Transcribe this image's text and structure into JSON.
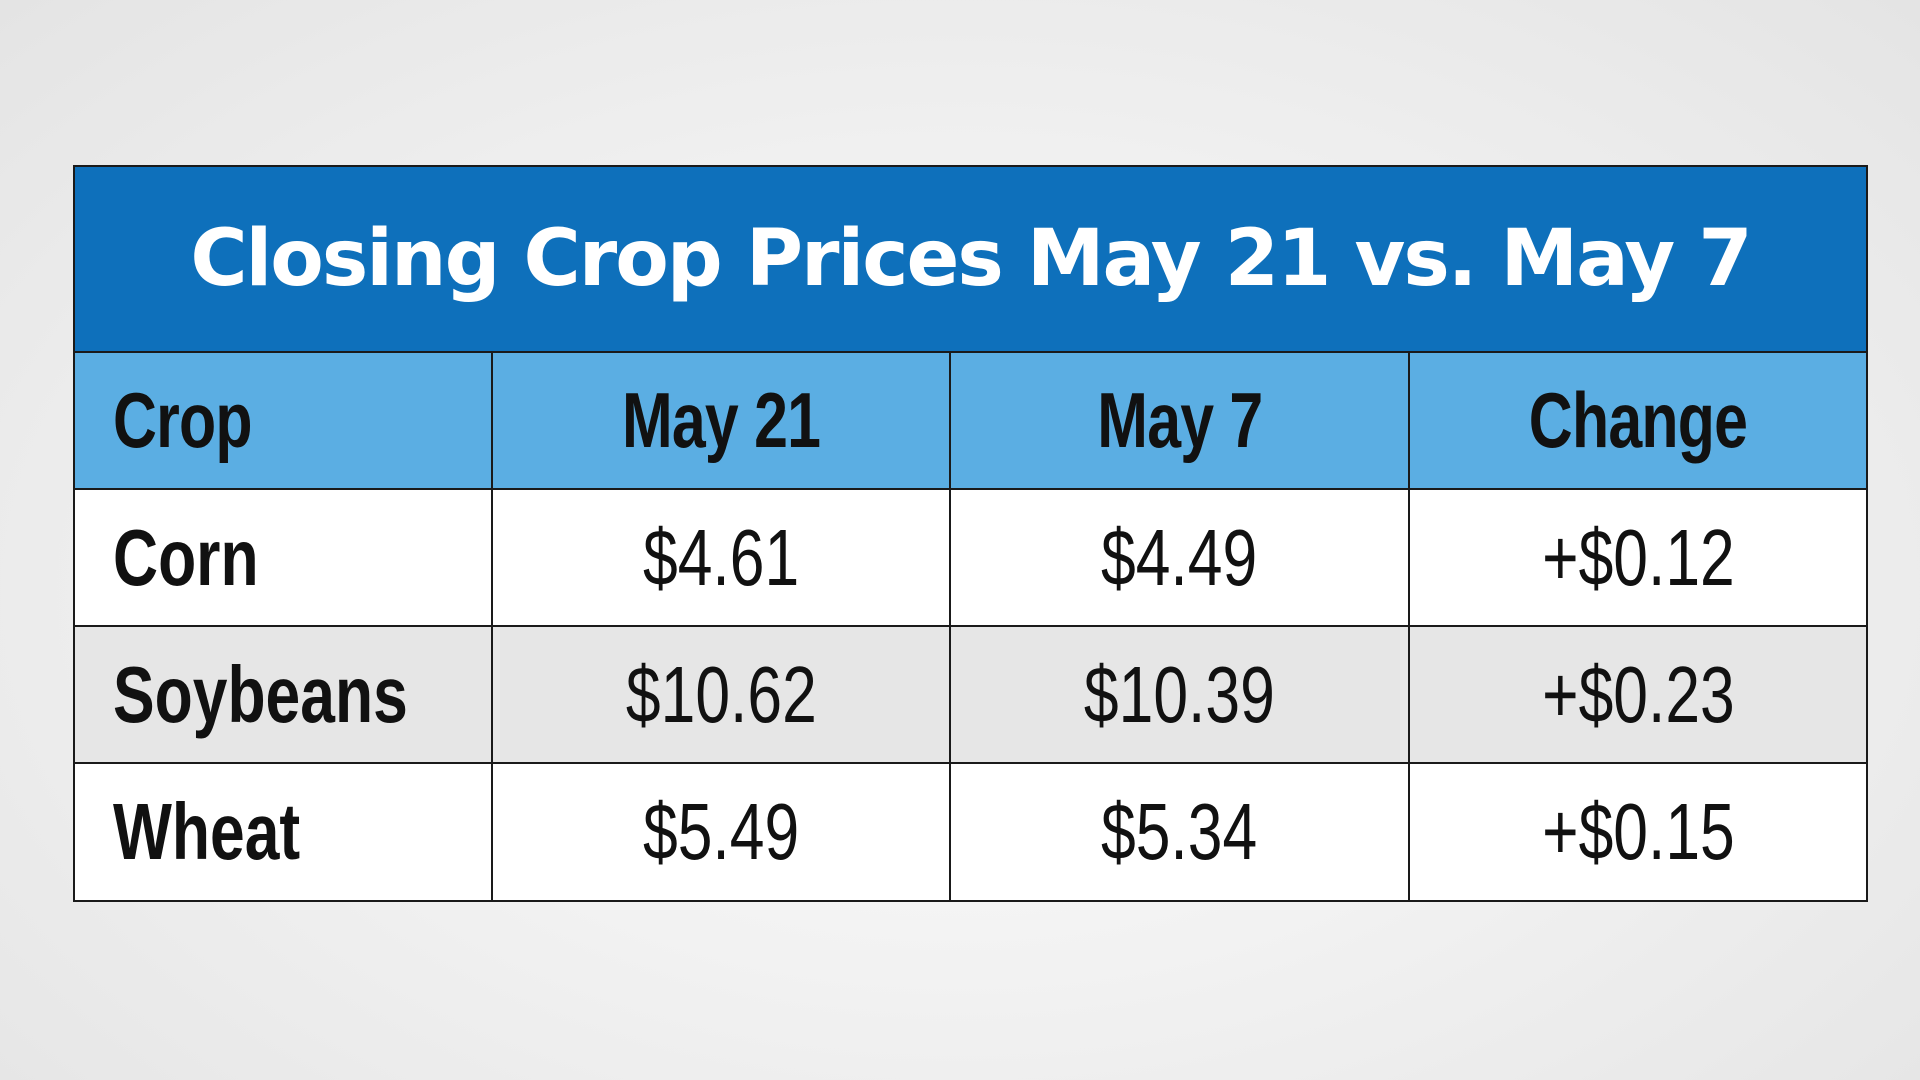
{
  "chart_data": {
    "type": "table",
    "title": "Closing Crop Prices May 21 vs. May 7",
    "columns": [
      "Crop",
      "May 21",
      "May 7",
      "Change"
    ],
    "rows": [
      [
        "Corn",
        "$4.61",
        "$4.49",
        "+$0.12"
      ],
      [
        "Soybeans",
        "$10.62",
        "$10.39",
        "+$0.23"
      ],
      [
        "Wheat",
        "$5.49",
        "$5.34",
        "+$0.15"
      ]
    ]
  },
  "colors": {
    "title_bar": "#0e70bb",
    "header_row": "#5baee3",
    "row_alt": "#e6e6e6",
    "border": "#1a1a1a"
  }
}
